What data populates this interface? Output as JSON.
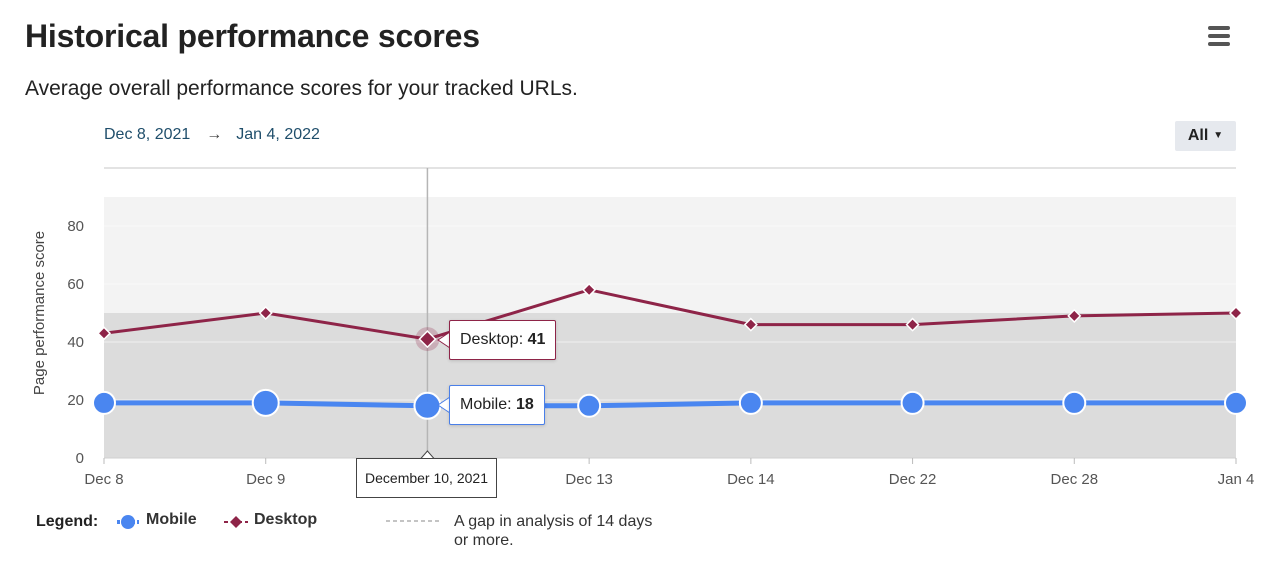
{
  "header": {
    "title": "Historical performance scores",
    "subtitle": "Average overall performance scores for your tracked URLs.",
    "menu_icon": "hamburger-menu-icon"
  },
  "date_range": {
    "start": "Dec 8, 2021",
    "arrow": "→",
    "end": "Jan 4, 2022"
  },
  "filter": {
    "label": "All",
    "caret": "▼"
  },
  "tooltip": {
    "date": "December 10, 2021",
    "desktop_label": "Desktop: ",
    "desktop_value": "41",
    "mobile_label": "Mobile: ",
    "mobile_value": "18"
  },
  "legend": {
    "title": "Legend:",
    "mobile": "Mobile",
    "desktop": "Desktop",
    "gap_note": "A gap in analysis of 14 days or more."
  },
  "chart_data": {
    "type": "line",
    "ylabel": "Page performance score",
    "ylim": [
      0,
      90
    ],
    "yticks": [
      0,
      20,
      40,
      60,
      80
    ],
    "categories": [
      "Dec 8",
      "Dec 9",
      "Dec 10",
      "Dec 13",
      "Dec 14",
      "Dec 22",
      "Dec 28",
      "Jan 4"
    ],
    "xtick_labels": [
      "Dec 8",
      "Dec 9",
      "",
      "Dec 13",
      "Dec 14",
      "Dec 22",
      "Dec 28",
      "Jan 4"
    ],
    "series": [
      {
        "name": "Mobile",
        "values": [
          19,
          19,
          18,
          18,
          19,
          19,
          19,
          19
        ],
        "color": "#4a86f0",
        "marker": "circle"
      },
      {
        "name": "Desktop",
        "values": [
          43,
          50,
          41,
          58,
          46,
          46,
          49,
          50
        ],
        "color": "#8e2448",
        "marker": "diamond"
      }
    ],
    "bands": [
      {
        "from": 0,
        "to": 50,
        "color": "#dcdcdc"
      },
      {
        "from": 50,
        "to": 90,
        "color": "#f3f3f3"
      }
    ],
    "highlight_index": 2,
    "grid": true,
    "legend_position": "bottom-left"
  }
}
